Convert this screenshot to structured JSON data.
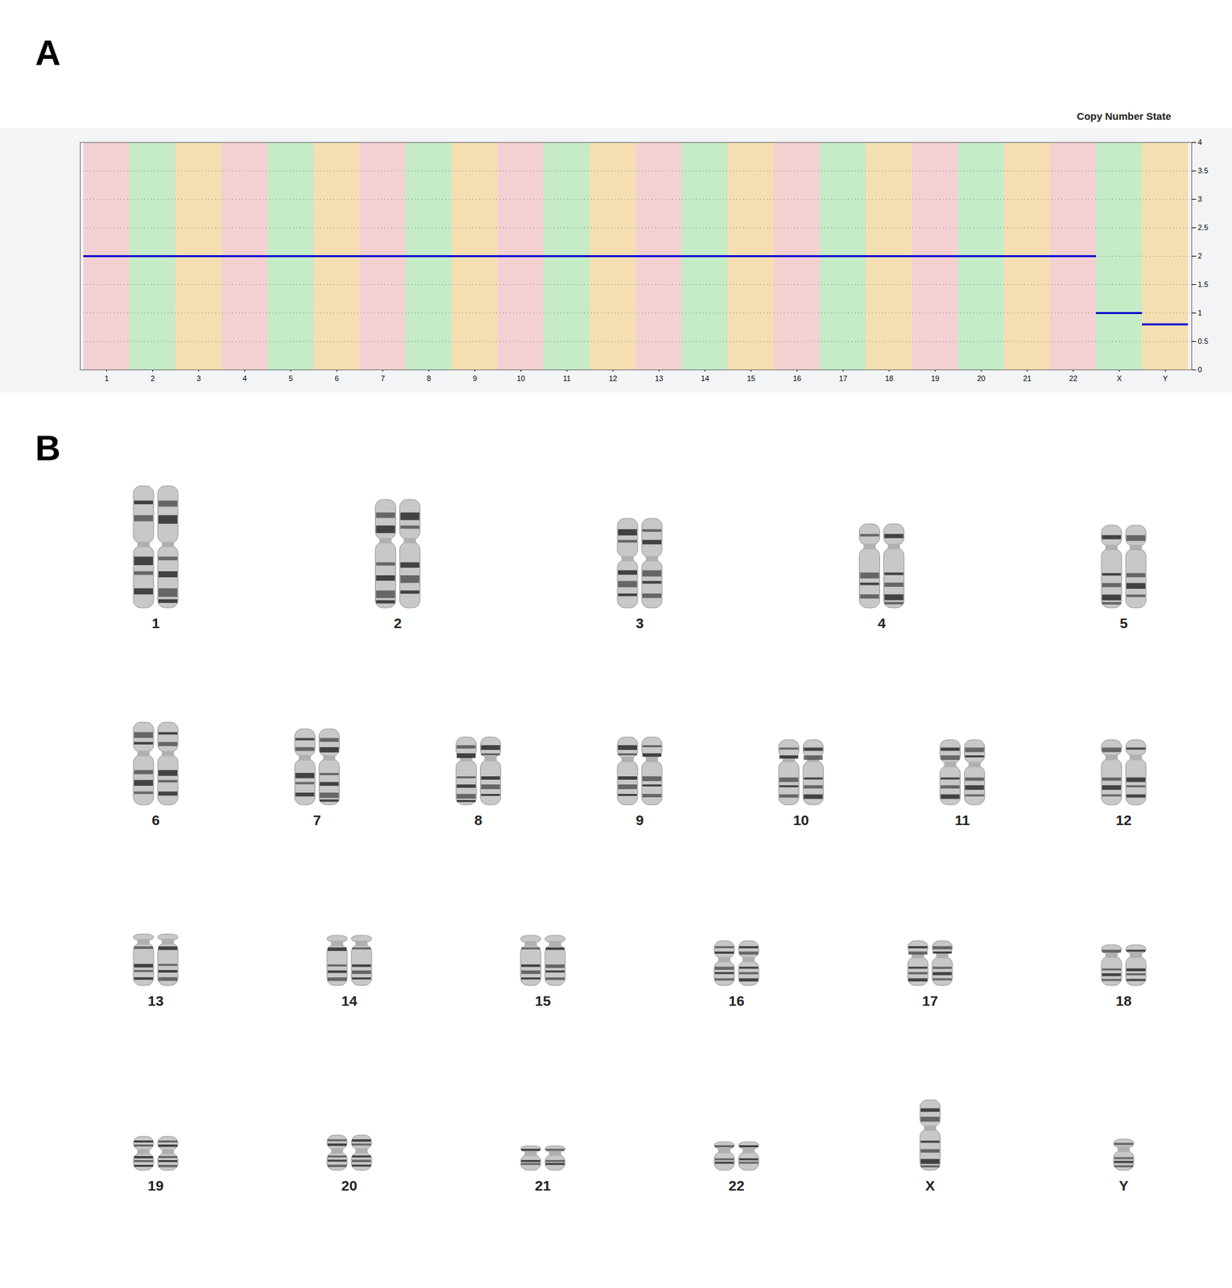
{
  "chart_data": {
    "type": "line",
    "panel": "A",
    "title": "Copy Number State",
    "categories": [
      "1",
      "2",
      "3",
      "4",
      "5",
      "6",
      "7",
      "8",
      "9",
      "10",
      "11",
      "12",
      "13",
      "14",
      "15",
      "16",
      "17",
      "18",
      "19",
      "20",
      "21",
      "22",
      "X",
      "Y"
    ],
    "values": [
      2,
      2,
      2,
      2,
      2,
      2,
      2,
      2,
      2,
      2,
      2,
      2,
      2,
      2,
      2,
      2,
      2,
      2,
      2,
      2,
      2,
      2,
      1,
      0.8
    ],
    "colors": [
      "#f4a6a6",
      "#8fe08f",
      "#f8c660",
      "#f4a6a6",
      "#8fe08f",
      "#f8c660",
      "#f4a6a6",
      "#8fe08f",
      "#f8c660",
      "#f4a6a6",
      "#8fe08f",
      "#f8c660",
      "#f4a6a6",
      "#8fe08f",
      "#f8c660",
      "#f4a6a6",
      "#8fe08f",
      "#f8c660",
      "#f4a6a6",
      "#8fe08f",
      "#f8c660",
      "#f4a6a6",
      "#8fe08f",
      "#f8c660"
    ],
    "color": "#1010d0",
    "ylim": [
      0,
      4
    ],
    "yticks": [
      0,
      0.5,
      1,
      1.5,
      2,
      2.5,
      3,
      3.5,
      4
    ],
    "grid": true
  },
  "karyotype": {
    "panel": "B",
    "rows": [
      [
        {
          "label": "1",
          "copies": 2
        },
        {
          "label": "2",
          "copies": 2
        },
        {
          "label": "3",
          "copies": 2
        },
        {
          "label": "4",
          "copies": 2
        },
        {
          "label": "5",
          "copies": 2
        }
      ],
      [
        {
          "label": "6",
          "copies": 2
        },
        {
          "label": "7",
          "copies": 2
        },
        {
          "label": "8",
          "copies": 2
        },
        {
          "label": "9",
          "copies": 2
        },
        {
          "label": "10",
          "copies": 2
        },
        {
          "label": "11",
          "copies": 2
        },
        {
          "label": "12",
          "copies": 2
        }
      ],
      [
        {
          "label": "13",
          "copies": 2
        },
        {
          "label": "14",
          "copies": 2
        },
        {
          "label": "15",
          "copies": 2
        },
        {
          "label": "16",
          "copies": 2
        },
        {
          "label": "17",
          "copies": 2
        },
        {
          "label": "18",
          "copies": 2
        }
      ],
      [
        {
          "label": "19",
          "copies": 2
        },
        {
          "label": "20",
          "copies": 2
        },
        {
          "label": "21",
          "copies": 2
        },
        {
          "label": "22",
          "copies": 2
        },
        {
          "label": "X",
          "copies": 1
        },
        {
          "label": "Y",
          "copies": 1
        }
      ]
    ]
  }
}
